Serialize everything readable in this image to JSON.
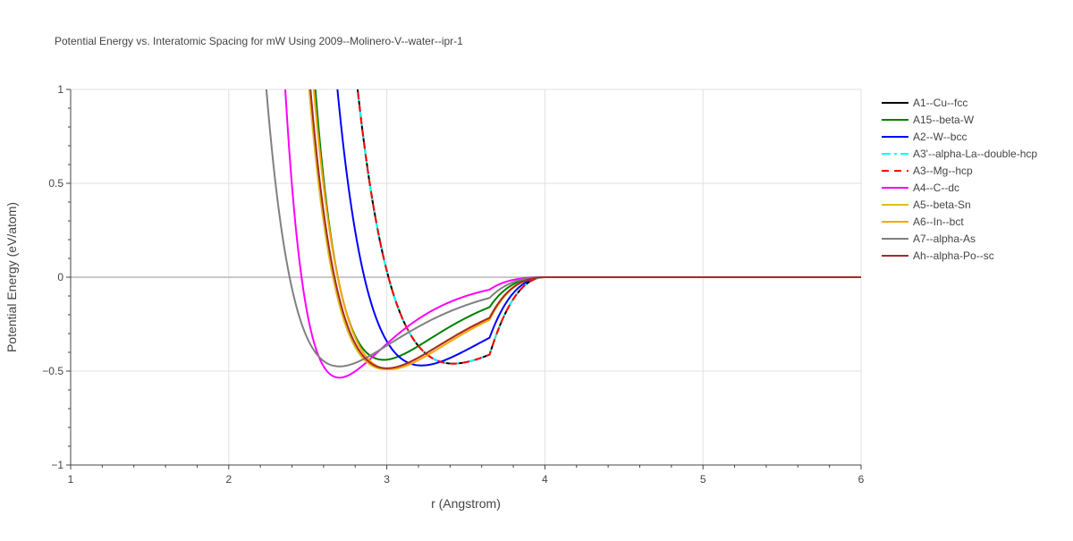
{
  "chart_data": {
    "type": "line",
    "title": "Potential Energy vs. Interatomic Spacing for mW Using 2009--Molinero-V--water--ipr-1",
    "xlabel": "r (Angstrom)",
    "ylabel": "Potential Energy (eV/atom)",
    "xlim": [
      1,
      6
    ],
    "ylim": [
      -1,
      1
    ],
    "xticks": [
      1,
      2,
      3,
      4,
      5,
      6
    ],
    "yticks": [
      -1,
      -0.5,
      0,
      0.5,
      1
    ],
    "ytick_labels": [
      "−1",
      "−0.5",
      "0",
      "0.5",
      "1"
    ],
    "grid": true,
    "legend_position": "right",
    "series": [
      {
        "name": "A1--Cu--fcc",
        "color": "#000000",
        "dash": "solid",
        "rmin": 3.42,
        "emin": -0.46,
        "w": 1.3,
        "width": 2,
        "x": [
          2.87,
          3.0,
          3.1,
          3.2,
          3.3,
          3.42,
          3.6,
          3.8,
          4.0,
          6.0
        ],
        "y": [
          1.0,
          0.23,
          -0.12,
          -0.33,
          -0.43,
          -0.46,
          -0.33,
          -0.11,
          0.0,
          0.0
        ]
      },
      {
        "name": "A15--beta-W",
        "color": "#008000",
        "dash": "solid",
        "rmin": 2.98,
        "emin": -0.44,
        "w": 0.92,
        "width": 2,
        "x": [
          2.43,
          2.6,
          2.8,
          2.98,
          3.2,
          3.4,
          3.6,
          3.8,
          4.0,
          6.0
        ],
        "y": [
          1.0,
          0.3,
          -0.3,
          -0.44,
          -0.35,
          -0.17,
          -0.06,
          -0.01,
          0.0,
          0.0
        ]
      },
      {
        "name": "A2--W--bcc",
        "color": "#0000ff",
        "dash": "solid",
        "rmin": 3.22,
        "emin": -0.47,
        "w": 1.15,
        "width": 2,
        "x": [
          2.78,
          2.9,
          3.0,
          3.1,
          3.22,
          3.4,
          3.6,
          3.8,
          4.0,
          6.0
        ],
        "y": [
          1.0,
          0.37,
          0.0,
          -0.34,
          -0.47,
          -0.38,
          -0.19,
          -0.05,
          0.0,
          0.0
        ]
      },
      {
        "name": "A3'--alpha-La--double-hcp",
        "color": "#00ffff",
        "dash": "dashdot",
        "rmin": 3.42,
        "emin": -0.46,
        "w": 1.3,
        "width": 2,
        "x": [
          2.87,
          3.0,
          3.1,
          3.2,
          3.3,
          3.42,
          3.6,
          3.8,
          4.0,
          6.0
        ],
        "y": [
          1.0,
          0.23,
          -0.12,
          -0.33,
          -0.43,
          -0.46,
          -0.33,
          -0.11,
          0.0,
          0.0
        ]
      },
      {
        "name": "A3--Mg--hcp",
        "color": "#ff0000",
        "dash": "dash",
        "rmin": 3.42,
        "emin": -0.46,
        "w": 1.3,
        "width": 2,
        "x": [
          2.87,
          3.0,
          3.1,
          3.2,
          3.3,
          3.42,
          3.6,
          3.8,
          4.0,
          6.0
        ],
        "y": [
          1.0,
          0.23,
          -0.12,
          -0.33,
          -0.43,
          -0.46,
          -0.33,
          -0.11,
          0.0,
          0.0
        ]
      },
      {
        "name": "A4--C--dc",
        "color": "#ff00ff",
        "dash": "solid",
        "rmin": 2.7,
        "emin": -0.535,
        "w": 0.76,
        "width": 2,
        "x": [
          2.1,
          2.2,
          2.3,
          2.45,
          2.7,
          3.0,
          3.3,
          3.6,
          3.8,
          4.0,
          6.0
        ],
        "y": [
          1.0,
          0.4,
          -0.2,
          -0.45,
          -0.535,
          -0.43,
          -0.29,
          -0.12,
          -0.04,
          0.0,
          0.0
        ]
      },
      {
        "name": "A5--beta-Sn",
        "color": "#dcbe1e",
        "dash": "solid",
        "rmin": 2.99,
        "emin": -0.49,
        "w": 1.05,
        "width": 2,
        "x": [
          2.47,
          2.6,
          2.75,
          2.99,
          3.2,
          3.4,
          3.6,
          3.8,
          4.0,
          6.0
        ],
        "y": [
          1.0,
          0.3,
          -0.25,
          -0.49,
          -0.4,
          -0.25,
          -0.11,
          -0.03,
          0.0,
          0.0
        ]
      },
      {
        "name": "A6--In--bct",
        "color": "#ffa500",
        "dash": "solid",
        "rmin": 3.02,
        "emin": -0.49,
        "w": 1.05,
        "width": 2,
        "x": [
          2.53,
          2.6,
          2.75,
          3.02,
          3.2,
          3.4,
          3.6,
          3.8,
          4.0,
          6.0
        ],
        "y": [
          1.0,
          0.65,
          0.0,
          -0.49,
          -0.43,
          -0.27,
          -0.12,
          -0.03,
          0.0,
          0.0
        ]
      },
      {
        "name": "A7--alpha-As",
        "color": "#808080",
        "dash": "solid",
        "rmin": 2.7,
        "emin": -0.475,
        "w": 1.0,
        "width": 2,
        "x": [
          2.23,
          2.35,
          2.5,
          2.7,
          3.0,
          3.3,
          3.6,
          3.8,
          4.0,
          6.0
        ],
        "y": [
          1.0,
          0.25,
          -0.3,
          -0.475,
          -0.39,
          -0.24,
          -0.12,
          -0.04,
          0.0,
          0.0
        ]
      },
      {
        "name": "Ah--alpha-Po--sc",
        "color": "#a52a2a",
        "dash": "solid",
        "rmin": 3.0,
        "emin": -0.485,
        "w": 1.05,
        "width": 2,
        "x": [
          2.46,
          2.55,
          2.7,
          3.0,
          3.2,
          3.4,
          3.6,
          3.8,
          4.0,
          6.0
        ],
        "y": [
          1.0,
          0.4,
          -0.2,
          -0.485,
          -0.45,
          -0.32,
          -0.16,
          -0.05,
          0.0,
          0.0
        ]
      }
    ]
  }
}
